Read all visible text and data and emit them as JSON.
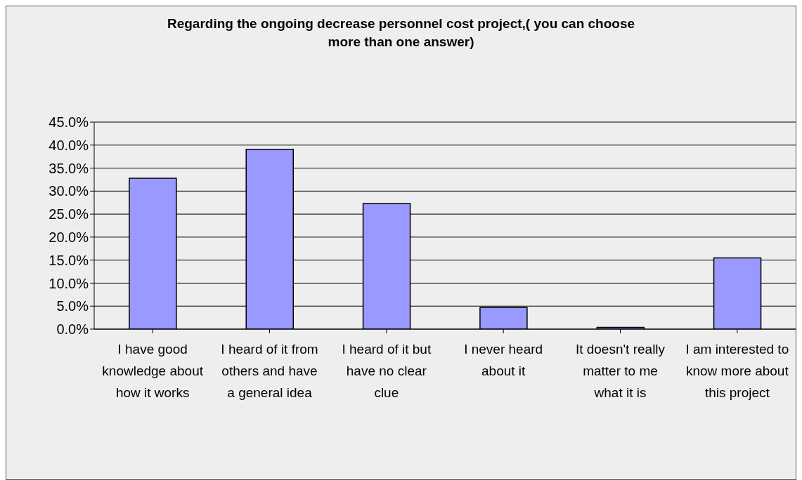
{
  "chart_data": {
    "type": "bar",
    "title": "Regarding the ongoing decrease personnel cost project,( you can choose more than one answer)",
    "categories": [
      "I have good knowledge about how it works",
      "I heard of it from others and have a general idea",
      "I heard of it but have no clear clue",
      "I never heard about it",
      "It doesn't really matter to me what it is",
      "I am interested to know more about this project"
    ],
    "values": [
      32.8,
      39.1,
      27.3,
      4.7,
      0.4,
      15.5
    ],
    "color": "#9999ff",
    "ylim": [
      0,
      45
    ],
    "yticks": [
      {
        "value": 0,
        "label": "0.0%"
      },
      {
        "value": 5,
        "label": "5.0%"
      },
      {
        "value": 10,
        "label": "10.0%"
      },
      {
        "value": 15,
        "label": "15.0%"
      },
      {
        "value": 20,
        "label": "20.0%"
      },
      {
        "value": 25,
        "label": "25.0%"
      },
      {
        "value": 30,
        "label": "30.0%"
      },
      {
        "value": 35,
        "label": "35.0%"
      },
      {
        "value": 40,
        "label": "40.0%"
      },
      {
        "value": 45,
        "label": "45.0%"
      }
    ],
    "grid": "y",
    "legend": false
  }
}
